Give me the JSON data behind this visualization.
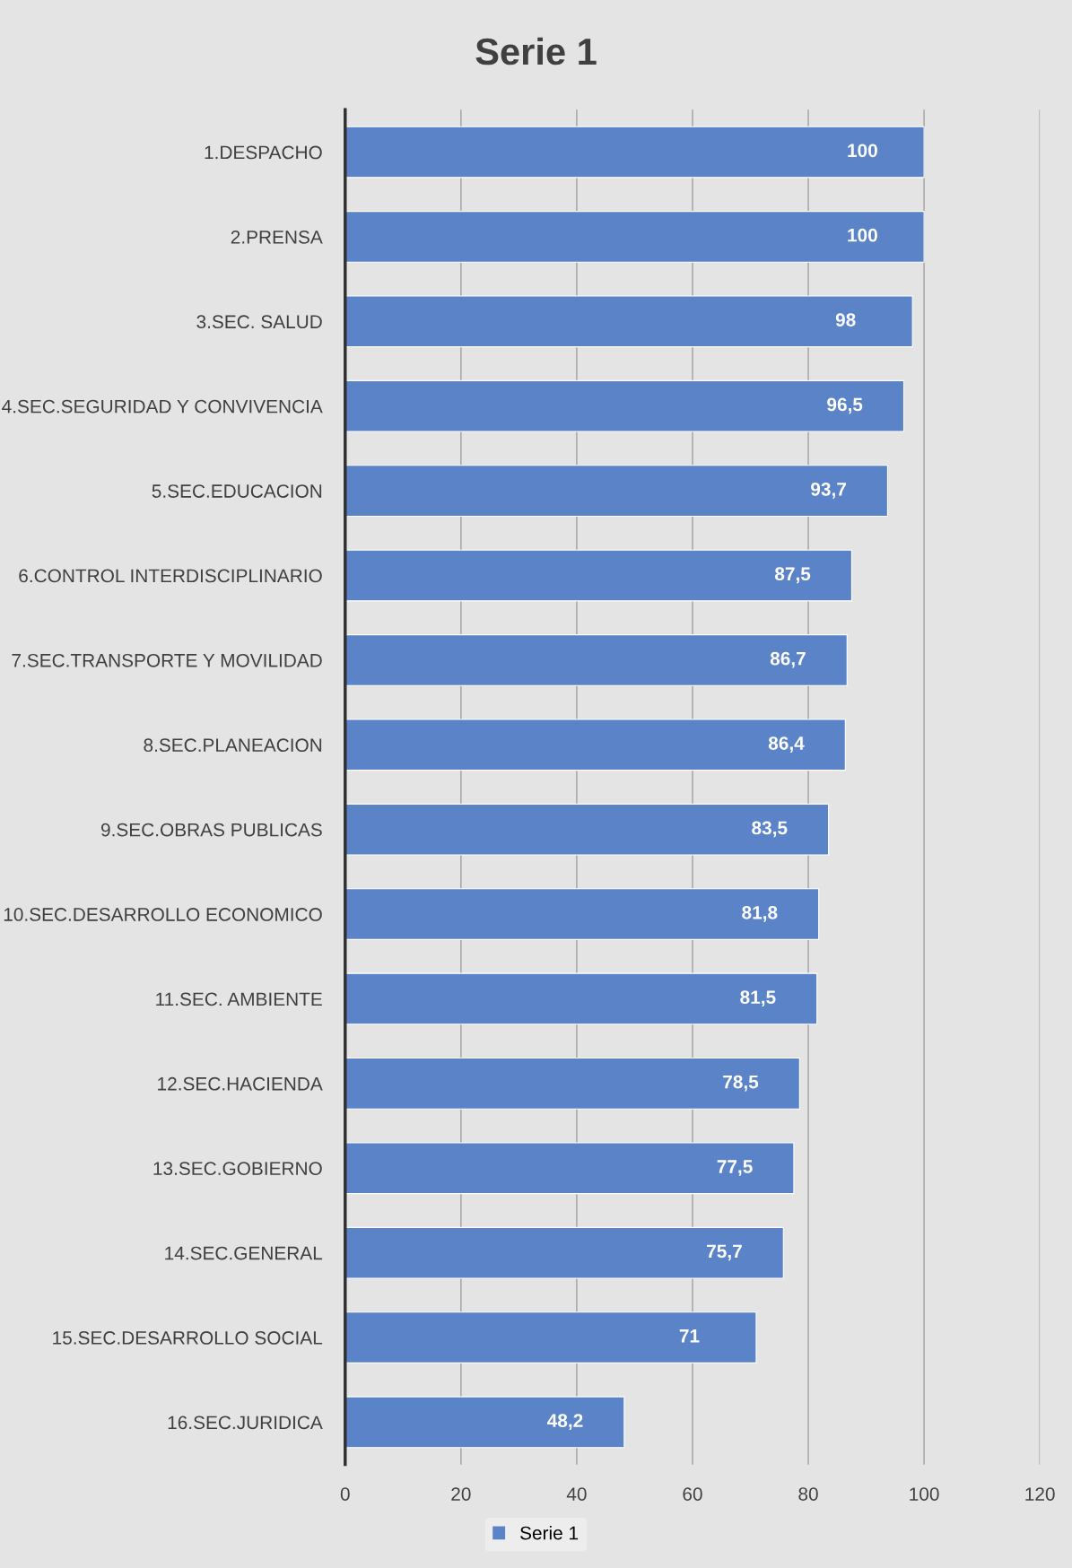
{
  "chart_data": {
    "type": "bar",
    "orientation": "horizontal",
    "title": "Serie 1",
    "categories": [
      "1.DESPACHO",
      "2.PRENSA",
      "3.SEC. SALUD",
      "4.SEC.SEGURIDAD Y CONVIVENCIA",
      "5.SEC.EDUCACION",
      "6.CONTROL INTERDISCIPLINARIO",
      "7.SEC.TRANSPORTE Y MOVILIDAD",
      "8.SEC.PLANEACION",
      "9.SEC.OBRAS PUBLICAS",
      "10.SEC.DESARROLLO ECONOMICO",
      "11.SEC. AMBIENTE",
      "12.SEC.HACIENDA",
      "13.SEC.GOBIERNO",
      "14.SEC.GENERAL",
      "15.SEC.DESARROLLO SOCIAL",
      "16.SEC.JURIDICA"
    ],
    "series": [
      {
        "name": "Serie 1",
        "color": "#5b84c8",
        "values": [
          100,
          100,
          98,
          96.5,
          93.7,
          87.5,
          86.7,
          86.4,
          83.5,
          81.8,
          81.5,
          78.5,
          77.5,
          75.7,
          71,
          48.2
        ]
      }
    ],
    "value_labels": [
      "100",
      "100",
      "98",
      "96,5",
      "93,7",
      "87,5",
      "86,7",
      "86,4",
      "83,5",
      "81,8",
      "81,5",
      "78,5",
      "77,5",
      "75,7",
      "71",
      "48,2"
    ],
    "xlim": [
      0,
      120
    ],
    "xticks": [
      0,
      20,
      40,
      60,
      80,
      100,
      120
    ],
    "grid": "x",
    "legend": "bottom"
  }
}
